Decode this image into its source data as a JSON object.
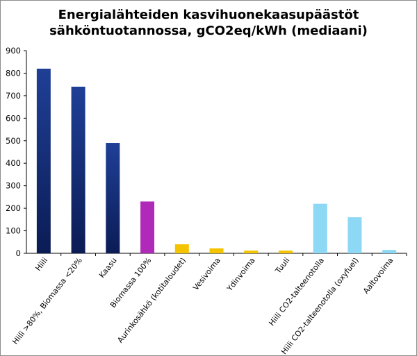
{
  "chart_data": {
    "type": "bar",
    "title_line1": "Energialähteiden kasvihuonekaasupäästöt",
    "title_line2": "sähköntuotannossa, gCO2eq/kWh (mediaani)",
    "categories": [
      "Hiili",
      "Hiili >80%, Biomassa <20%",
      "Kaasu",
      "Biomassa 100%",
      "Aurinkosähkö (kotitaloudet)",
      "Vesivoima",
      "Ydinvoima",
      "Tuuli",
      "Hiili CO2-talteenotolla",
      "Hiili CO2-talteenotolla (oxyfuel)",
      "Aaltovoima"
    ],
    "values": [
      820,
      740,
      490,
      230,
      40,
      22,
      12,
      12,
      220,
      160,
      15
    ],
    "bar_colors": [
      "navy-gradient",
      "navy-gradient",
      "navy-gradient",
      "#b02ab9",
      "#f5c400",
      "#f5c400",
      "#f5c400",
      "#f5c400",
      "#8cd8f5",
      "#8cd8f5",
      "#8cd8f5"
    ],
    "ylim": [
      0,
      900
    ],
    "yticks": [
      0,
      100,
      200,
      300,
      400,
      500,
      600,
      700,
      800,
      900
    ],
    "grid": false,
    "legend": "none"
  }
}
